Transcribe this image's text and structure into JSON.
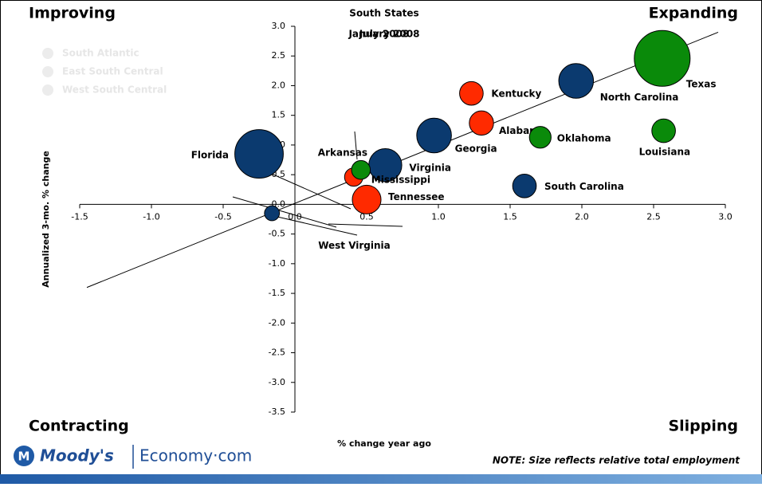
{
  "chart_data": {
    "type": "bubble",
    "title": "South States",
    "subtitles": [
      "January 2008",
      "July 2008"
    ],
    "x_label": "% change year ago",
    "y_label": "Annualized 3-mo. % change",
    "quadrants": {
      "top_left": "Improving",
      "top_right": "Expanding",
      "bottom_left": "Contracting",
      "bottom_right": "Slipping"
    },
    "note": "NOTE: Size reflects relative total employment",
    "logo": {
      "brand": "Moody's",
      "site": "Economy·com"
    },
    "xlim": [
      -1.5,
      3.0
    ],
    "ylim": [
      -3.5,
      3.0
    ],
    "xticks": [
      -1.5,
      {
        "value": -1,
        "label": "-1.0"
      },
      -0.5,
      {
        "value": 0,
        "label": "0.0"
      },
      0.5,
      {
        "value": 1,
        "label": "1.0"
      },
      1.5,
      {
        "value": 2,
        "label": "2.0"
      },
      2.5,
      {
        "value": 3,
        "label": "3.0"
      }
    ],
    "yticks": [
      {
        "value": 3,
        "label": "3.0"
      },
      2.5,
      {
        "value": 2,
        "label": "2.0"
      },
      1.5,
      {
        "value": 1,
        "label": "1.0"
      },
      0.5,
      {
        "value": 0,
        "label": "0.0"
      },
      -0.5,
      {
        "value": -1,
        "label": "-1.0"
      },
      -1.5,
      {
        "value": -2,
        "label": "-2.0"
      },
      -2.5,
      {
        "value": -3,
        "label": "-3.0"
      },
      -3.5
    ],
    "trendline": {
      "x": [
        -1.45,
        2.95
      ],
      "y": [
        -1.4,
        2.9
      ]
    },
    "series": [
      {
        "name": "South Atlantic",
        "color": "#0b3a6f",
        "labels": [
          "North Carolina",
          "Georgia",
          "Florida",
          "Virginia",
          "South Carolina",
          "West Virginia"
        ],
        "x": [
          1.96,
          0.97,
          -0.25,
          0.63,
          1.6,
          -0.16
        ],
        "y": [
          2.08,
          1.16,
          0.85,
          0.66,
          0.31,
          -0.15
        ],
        "size": [
          4100,
          4100,
          8000,
          3700,
          1900,
          760
        ]
      },
      {
        "name": "East South Central",
        "color": "#ff2a00",
        "labels": [
          "Kentucky",
          "Alabama",
          "Mississippi",
          "Tennessee"
        ],
        "x": [
          1.23,
          1.3,
          0.41,
          0.5
        ],
        "y": [
          1.87,
          1.37,
          0.46,
          0.08
        ],
        "size": [
          1900,
          2000,
          1150,
          2800
        ]
      },
      {
        "name": "West South Central",
        "color": "#0a8a0a",
        "labels": [
          "Texas",
          "Oklahoma",
          "Louisiana",
          "Arkansas"
        ],
        "x": [
          2.56,
          1.71,
          2.57,
          0.46
        ],
        "y": [
          2.46,
          1.13,
          1.24,
          0.58
        ],
        "size": [
          10600,
          1600,
          1900,
          1200
        ]
      }
    ]
  }
}
